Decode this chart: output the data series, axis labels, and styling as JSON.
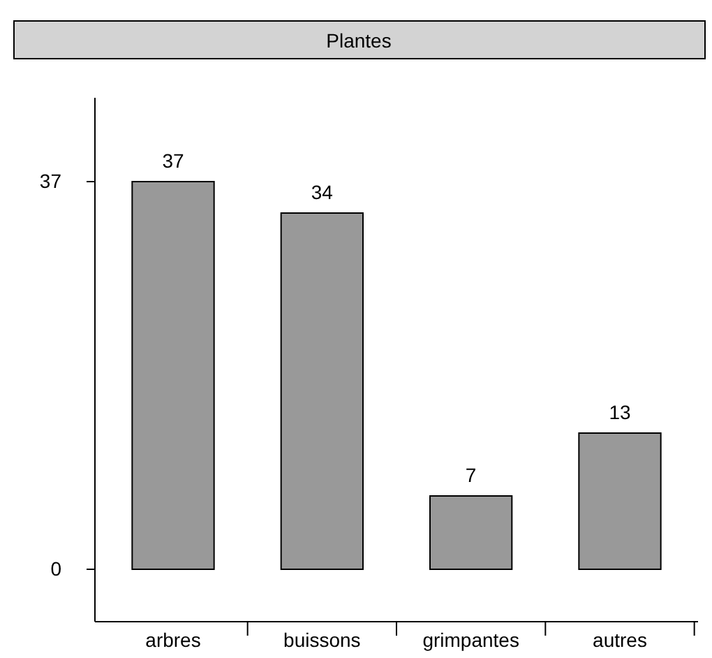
{
  "chart_data": {
    "type": "bar",
    "title": "Plantes",
    "categories": [
      "arbres",
      "buissons",
      "grimpantes",
      "autres"
    ],
    "values": [
      37,
      34,
      7,
      13
    ],
    "color": "#999999",
    "ylim": [
      -5,
      45
    ],
    "yticks": [
      0,
      37
    ],
    "data_labels": true,
    "grid": false
  }
}
